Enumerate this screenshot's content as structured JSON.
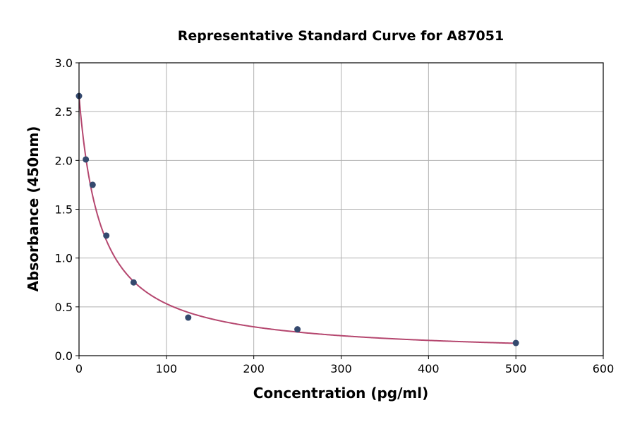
{
  "chart_data": {
    "type": "scatter",
    "title": "Representative Standard Curve for A87051",
    "xlabel": "Concentration (pg/ml)",
    "ylabel": "Absorbance (450nm)",
    "xlim": [
      0,
      600
    ],
    "ylim": [
      0,
      3.0
    ],
    "xticks": [
      0,
      100,
      200,
      300,
      400,
      500,
      600
    ],
    "yticks": [
      0.0,
      0.5,
      1.0,
      1.5,
      2.0,
      2.5,
      3.0
    ],
    "xtick_labels": [
      "0",
      "100",
      "200",
      "300",
      "400",
      "500",
      "600"
    ],
    "ytick_labels": [
      "0.0",
      "0.5",
      "1.0",
      "1.5",
      "2.0",
      "2.5",
      "3.0"
    ],
    "grid": true,
    "points": {
      "x": [
        0,
        7.8,
        15.6,
        31.25,
        62.5,
        125,
        250,
        500
      ],
      "y": [
        2.66,
        2.01,
        1.75,
        1.23,
        0.75,
        0.39,
        0.27,
        0.13
      ]
    },
    "fit_curve": true,
    "colors": {
      "points": "#34496e",
      "curve": "#b5476f",
      "grid": "#b0b0b0"
    }
  }
}
